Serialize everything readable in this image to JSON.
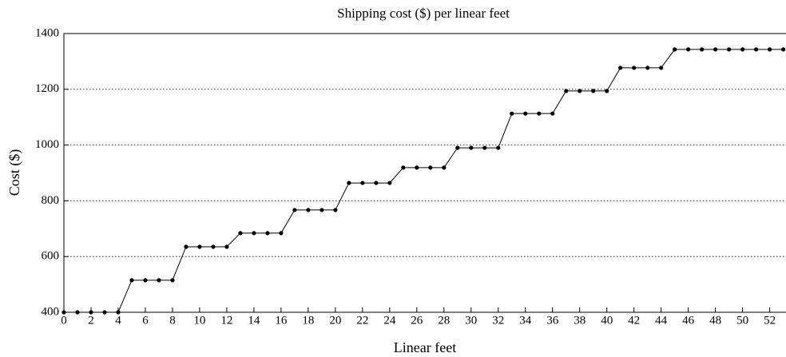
{
  "chart_data": {
    "type": "line",
    "title": "Shipping cost ($) per linear feet",
    "x_label": "Linear feet",
    "y_label": "Cost ($)",
    "x": [
      0,
      1,
      2,
      3,
      4,
      5,
      6,
      7,
      8,
      9,
      10,
      11,
      12,
      13,
      14,
      15,
      16,
      17,
      18,
      19,
      20,
      21,
      22,
      23,
      24,
      25,
      26,
      27,
      28,
      29,
      30,
      31,
      32,
      33,
      34,
      35,
      36,
      37,
      38,
      39,
      40,
      41,
      42,
      43,
      44,
      45,
      46,
      47,
      48,
      49,
      50,
      51,
      52,
      53
    ],
    "series": [
      {
        "name": "Cost",
        "color": "#000000",
        "values": [
          400,
          400,
          400,
          400,
          400,
          515,
          515,
          515,
          515,
          635,
          635,
          635,
          635,
          684,
          684,
          684,
          684,
          767,
          767,
          767,
          767,
          864,
          864,
          864,
          864,
          919,
          919,
          919,
          919,
          990,
          990,
          990,
          990,
          1113,
          1113,
          1113,
          1113,
          1194,
          1194,
          1194,
          1194,
          1277,
          1277,
          1277,
          1277,
          1343,
          1343,
          1343,
          1343,
          1343,
          1343,
          1343,
          1343,
          1343
        ]
      }
    ],
    "xlim": [
      0,
      53.2
    ],
    "ylim": [
      400,
      1400
    ],
    "xticks": [
      0,
      2,
      4,
      6,
      8,
      10,
      12,
      14,
      16,
      18,
      20,
      22,
      24,
      26,
      28,
      30,
      32,
      34,
      36,
      38,
      40,
      42,
      44,
      46,
      48,
      50,
      52
    ],
    "yticks": [
      400,
      600,
      800,
      1000,
      1200,
      1400
    ],
    "grid": true
  }
}
